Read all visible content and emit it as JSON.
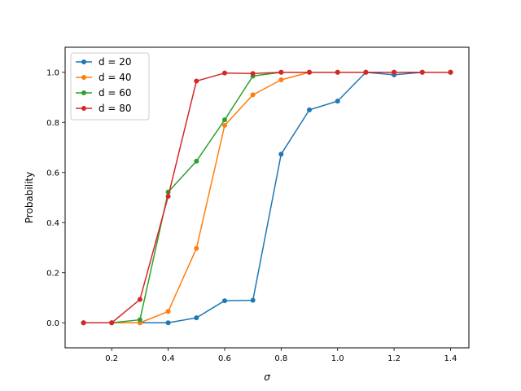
{
  "chart_data": {
    "type": "line",
    "title": "",
    "xlabel": "σ",
    "ylabel": "Probability",
    "xlim": [
      0.035,
      1.465
    ],
    "ylim": [
      -0.1,
      1.1
    ],
    "xticks": [
      0.2,
      0.4,
      0.6,
      0.8,
      1.0,
      1.2,
      1.4
    ],
    "xtick_labels": [
      "0.2",
      "0.4",
      "0.6",
      "0.8",
      "1.0",
      "1.2",
      "1.4"
    ],
    "yticks": [
      0.0,
      0.2,
      0.4,
      0.6,
      0.8,
      1.0
    ],
    "ytick_labels": [
      "0.0",
      "0.2",
      "0.4",
      "0.6",
      "0.8",
      "1.0"
    ],
    "grid": false,
    "legend_position": "top-left",
    "x": [
      0.1,
      0.2,
      0.3,
      0.4,
      0.5,
      0.6,
      0.7,
      0.8,
      0.9,
      1.0,
      1.1,
      1.2,
      1.3,
      1.4
    ],
    "series": [
      {
        "name": "d = 20",
        "color": "#1f77b4",
        "values": [
          0.0,
          0.0,
          0.0,
          0.0,
          0.02,
          0.088,
          0.09,
          0.673,
          0.85,
          0.885,
          1.0,
          0.99,
          1.0,
          1.0
        ]
      },
      {
        "name": "d = 40",
        "color": "#ff7f0e",
        "values": [
          0.0,
          0.0,
          0.0,
          0.045,
          0.297,
          0.788,
          0.91,
          0.97,
          1.0,
          1.0,
          1.0,
          1.0,
          1.0,
          1.0
        ]
      },
      {
        "name": "d = 60",
        "color": "#2ca02c",
        "values": [
          0.0,
          0.0,
          0.012,
          0.522,
          0.645,
          0.81,
          0.985,
          1.0,
          1.0,
          1.0,
          1.0,
          1.0,
          1.0,
          1.0
        ]
      },
      {
        "name": "d = 80",
        "color": "#d62728",
        "values": [
          0.0,
          0.0,
          0.093,
          0.505,
          0.965,
          0.997,
          0.995,
          1.0,
          1.0,
          1.0,
          1.0,
          1.0,
          1.0,
          1.0
        ]
      }
    ]
  }
}
